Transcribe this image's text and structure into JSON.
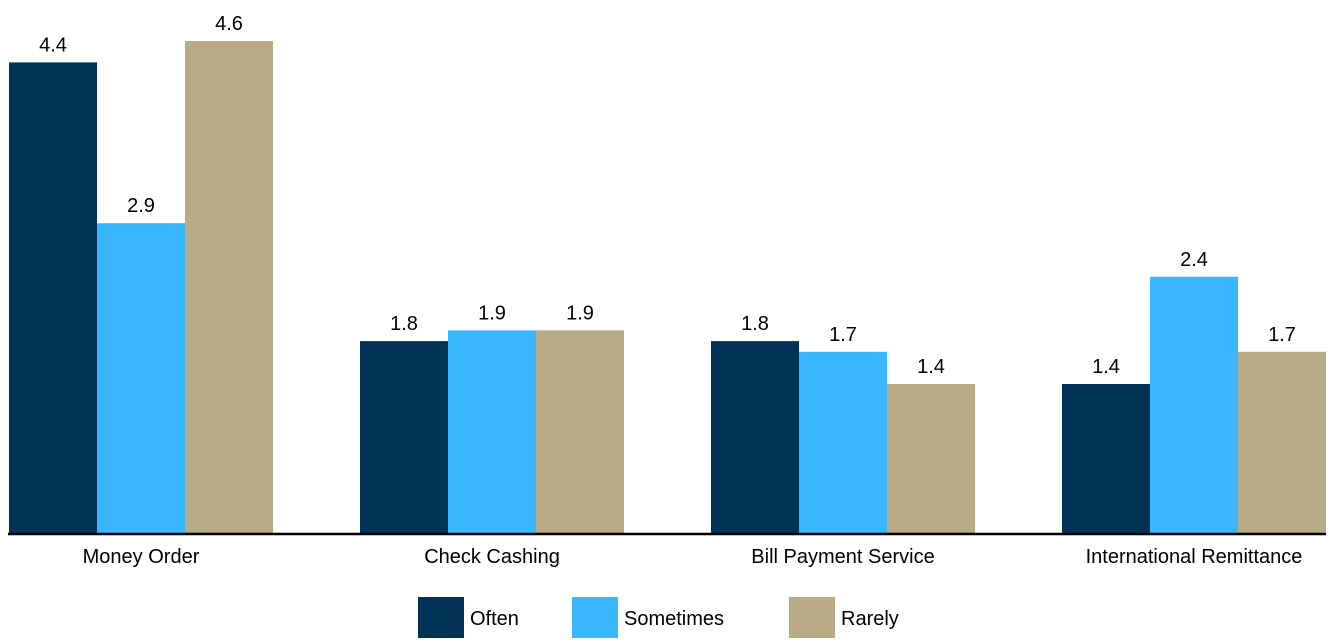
{
  "chart_data": {
    "type": "bar",
    "title": "",
    "xlabel": "",
    "ylabel": "",
    "ylim": [
      0,
      4.6
    ],
    "grid": false,
    "legend_position": "bottom-center",
    "categories": [
      "Money Order",
      "Check Cashing",
      "Bill Payment Service",
      "International Remittance"
    ],
    "series": [
      {
        "name": "Often",
        "color": "#003356",
        "values": [
          4.4,
          1.8,
          1.8,
          1.4
        ],
        "labels": [
          "4.4",
          "1.8",
          "1.8",
          "1.4"
        ]
      },
      {
        "name": "Sometimes",
        "color": "#38b6ff",
        "values": [
          2.9,
          1.9,
          1.7,
          2.4
        ],
        "labels": [
          "2.9",
          "1.9",
          "1.7",
          "2.4"
        ]
      },
      {
        "name": "Rarely",
        "color": "#b8ab85",
        "values": [
          4.6,
          1.9,
          1.4,
          1.7
        ],
        "labels": [
          "4.6",
          "1.9",
          "1.4",
          "1.7"
        ]
      }
    ]
  }
}
